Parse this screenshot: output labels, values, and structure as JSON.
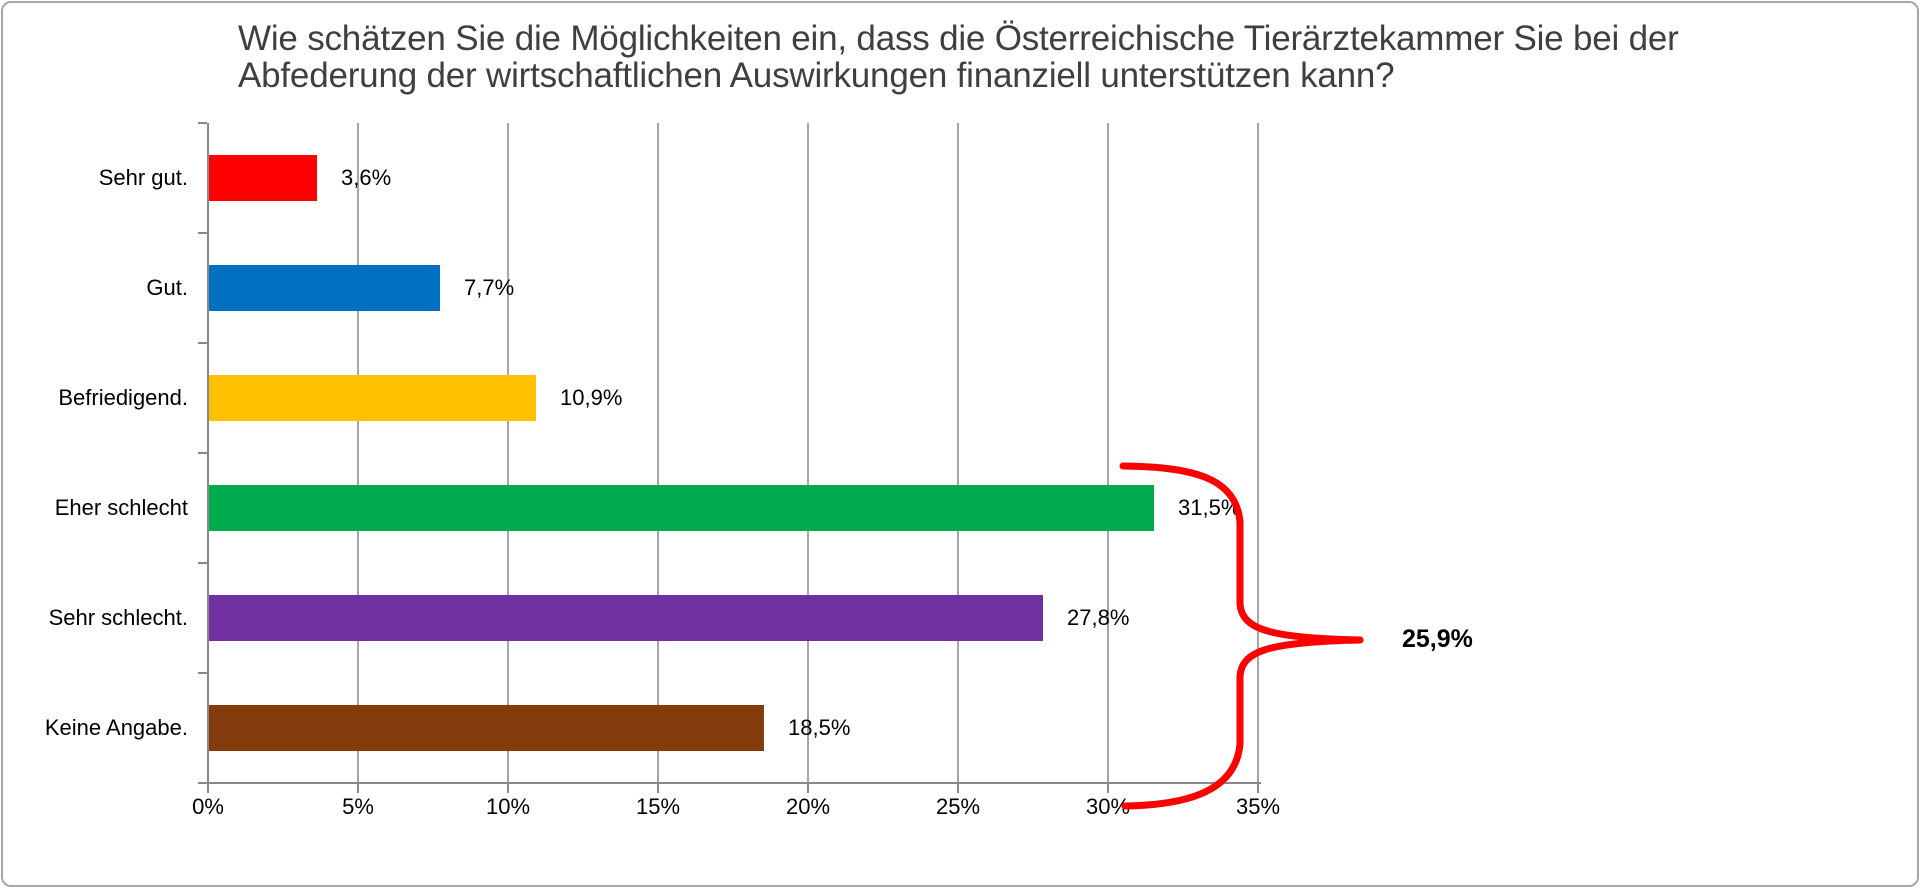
{
  "chart_data": {
    "type": "bar",
    "orientation": "horizontal",
    "title": "Wie schätzen Sie die Möglichkeiten ein, dass die Österreichische Tierärztekammer Sie bei der Abfederung der wirtschaftlichen Auswirkungen finanziell unterstützen kann?",
    "title_display": "Wie schätzen Sie die Möglichkeiten ein, dass die Österreichische Tierärztekammer Sie bei der\nAbfederung der wirtschaftlichen Auswirkungen finanziell unterstützen kann?",
    "categories": [
      "Sehr gut.",
      "Gut.",
      "Befriedigend.",
      "Eher schlecht",
      "Sehr schlecht.",
      "Keine Angabe."
    ],
    "values": [
      3.6,
      7.7,
      10.9,
      31.5,
      27.8,
      18.5
    ],
    "value_labels": [
      "3,6%",
      "7,7%",
      "10,9%",
      "31,5%",
      "27,8%",
      "18,5%"
    ],
    "bar_colors": [
      "#fe0000",
      "#0070c0",
      "#ffc000",
      "#00ac4e",
      "#7030a0",
      "#843c0c"
    ],
    "x_ticks": [
      "0%",
      "5%",
      "10%",
      "15%",
      "20%",
      "25%",
      "30%",
      "35%"
    ],
    "xlim": [
      0,
      35
    ],
    "xlabel": "",
    "ylabel": "",
    "grid": "vertical-only",
    "legend": "none",
    "annotation": {
      "label": "25,9%",
      "brace_color": "#fe0000"
    }
  }
}
